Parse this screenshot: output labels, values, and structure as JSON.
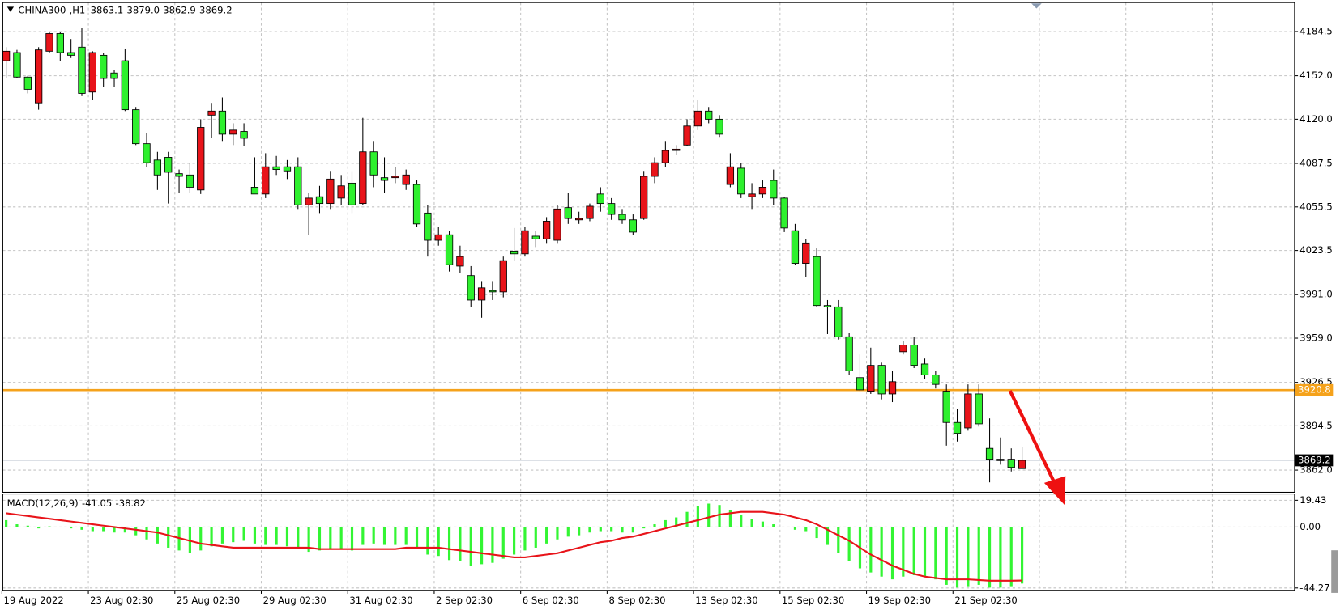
{
  "chart_data": [
    {
      "type": "candlestick",
      "title": "CHINA300-,H1",
      "title_labels": [
        "3863.1",
        "3879.0",
        "3862.9",
        "3869.2"
      ],
      "categories": [
        "19 Aug 2022",
        null,
        null,
        null,
        null,
        null,
        null,
        null,
        "23 Aug 02:30",
        null,
        null,
        null,
        null,
        null,
        null,
        null,
        "25 Aug 02:30",
        null,
        null,
        null,
        null,
        null,
        null,
        null,
        "29 Aug 02:30",
        null,
        null,
        null,
        null,
        null,
        null,
        null,
        "31 Aug 02:30",
        null,
        null,
        null,
        null,
        null,
        null,
        null,
        "2 Sep 02:30",
        null,
        null,
        null,
        null,
        null,
        null,
        null,
        "6 Sep 02:30",
        null,
        null,
        null,
        null,
        null,
        null,
        null,
        "8 Sep 02:30",
        null,
        null,
        null,
        null,
        null,
        null,
        null,
        "13 Sep 02:30",
        null,
        null,
        null,
        null,
        null,
        null,
        null,
        "15 Sep 02:30",
        null,
        null,
        null,
        null,
        null,
        null,
        null,
        "19 Sep 02:30",
        null,
        null,
        null,
        null,
        null,
        null,
        null,
        "21 Sep 02:30",
        null,
        null,
        null,
        null,
        null,
        null
      ],
      "open": [
        4163,
        4169,
        4151,
        4132,
        4170,
        4183,
        4169,
        4173,
        4140,
        4167,
        4154,
        4163,
        4127,
        4102,
        4090,
        4092,
        4080,
        4079,
        4068,
        4123,
        4126,
        4109,
        4111,
        4070,
        4065,
        4085,
        4085,
        4085,
        4057,
        4063,
        4058,
        4062,
        4073,
        4058,
        4096,
        4077,
        4077,
        4072,
        4072,
        4051,
        4031,
        4035,
        4012,
        4005,
        3987,
        3994,
        3993,
        4023,
        4021,
        4034,
        4032,
        4031,
        4055,
        4046,
        4047,
        4065,
        4058,
        4050,
        4046,
        4047,
        4078,
        4088,
        4097,
        4101,
        4115,
        4126,
        4120,
        4072,
        4084,
        4063,
        4065,
        4075,
        4062,
        4038,
        4014,
        4019,
        3983,
        3982,
        3960,
        3930,
        3920,
        3939,
        3918,
        3949,
        3954,
        3940,
        3932,
        3920,
        3897,
        3893,
        3918,
        3878,
        3870,
        3870,
        3863.1
      ],
      "high": [
        4173,
        4171,
        4152,
        4173,
        4184,
        4184,
        4179,
        4187,
        4170,
        4169,
        4156,
        4172,
        4129,
        4110,
        4096,
        4096,
        4083,
        4088,
        4120,
        4132,
        4136,
        4117,
        4117,
        4092,
        4095,
        4093,
        4090,
        4092,
        4066,
        4071,
        4082,
        4079,
        4082,
        4121,
        4104,
        4092,
        4085,
        4083,
        4075,
        4057,
        4041,
        4038,
        4027,
        4012,
        4001,
        4001,
        4019,
        4040,
        4041,
        4038,
        4048,
        4057,
        4066,
        4052,
        4058,
        4070,
        4062,
        4054,
        4050,
        4082,
        4092,
        4104,
        4101,
        4120,
        4134,
        4129,
        4123,
        4095,
        4088,
        4073,
        4075,
        4083,
        4063,
        4043,
        4032,
        4025,
        3987,
        3987,
        3963,
        3947,
        3952,
        3941,
        3935,
        3957,
        3960,
        3944,
        3935,
        3925,
        3907,
        3925,
        3925,
        3900,
        3886,
        3878,
        3879.0
      ],
      "low": [
        4150,
        4150,
        4139,
        4127,
        4169,
        4163,
        4165,
        4137,
        4134,
        4144,
        4144,
        4126,
        4101,
        4085,
        4068,
        4058,
        4066,
        4066,
        4065,
        4106,
        4104,
        4101,
        4100,
        4065,
        4062,
        4079,
        4076,
        4054,
        4035,
        4051,
        4054,
        4057,
        4051,
        4057,
        4070,
        4066,
        4073,
        4068,
        4041,
        4019,
        4027,
        4008,
        4007,
        3982,
        3974,
        3987,
        3989,
        4016,
        4019,
        4026,
        4029,
        4029,
        4043,
        4043,
        4045,
        4052,
        4046,
        4043,
        4035,
        4046,
        4073,
        4085,
        4094,
        4100,
        4112,
        4117,
        4107,
        4070,
        4062,
        4054,
        4062,
        4057,
        4037,
        4013,
        4004,
        3982,
        3962,
        3958,
        3932,
        3920,
        3918,
        3914,
        3912,
        3947,
        3937,
        3929,
        3922,
        3880,
        3883,
        3891,
        3894,
        3853,
        3866,
        3861,
        3862.9
      ],
      "close": [
        4170,
        4151,
        4142,
        4171,
        4183,
        4169,
        4167,
        4139,
        4169,
        4150,
        4150,
        4127,
        4102,
        4088,
        4079,
        4081,
        4078,
        4070,
        4114,
        4126,
        4109,
        4112,
        4106,
        4065,
        4085,
        4083,
        4082,
        4057,
        4062,
        4058,
        4076,
        4071,
        4057,
        4096,
        4079,
        4075,
        4078,
        4079,
        4043,
        4031,
        4035,
        4013,
        4019,
        3987,
        3996,
        3993,
        4016,
        4021,
        4038,
        4032,
        4045,
        4054,
        4047,
        4047,
        4056,
        4058,
        4050,
        4046,
        4037,
        4078,
        4088,
        4097,
        4098,
        4115,
        4126,
        4120,
        4109,
        4085,
        4065,
        4065,
        4070,
        4062,
        4040,
        4014,
        4029,
        3983,
        3982,
        3960,
        3935,
        3921,
        3939,
        3918,
        3927,
        3954,
        3939,
        3932,
        3925,
        3897,
        3889,
        3918,
        3896,
        3870,
        3869,
        3864,
        3869.2
      ],
      "up_color": "#e8141a",
      "down_color": "#2ef02e",
      "ylim": [
        3845.7,
        4205.8
      ],
      "yticks": [
        4184.5,
        {
          "value": 4152,
          "label": "4152.0"
        },
        {
          "value": 4120,
          "label": "4120.0"
        },
        4087.5,
        4055.5,
        4023.5,
        {
          "value": 3991,
          "label": "3991.0"
        },
        {
          "value": 3959,
          "label": "3959.0"
        },
        3926.5,
        3894.5,
        {
          "value": 3862,
          "label": "3862.0"
        }
      ],
      "grid": true,
      "hlines": [
        {
          "value": 3920.8,
          "color": "#f5a21b"
        }
      ],
      "current_price": 3869.2
    },
    {
      "type": "macd",
      "title": "MACD(12,26,9)",
      "histogram": {
        "color": "#33f533",
        "values": [
          5,
          2,
          1,
          -1,
          0.5,
          0,
          -1,
          -2,
          -3,
          -3,
          -4,
          -4,
          -6,
          -9,
          -12,
          -15,
          -17,
          -19,
          -17,
          -14,
          -12,
          -11,
          -10,
          -12,
          -13,
          -13,
          -14,
          -16,
          -18,
          -17,
          -16,
          -16,
          -17,
          -13,
          -12,
          -13,
          -13,
          -13,
          -16,
          -20,
          -21,
          -24,
          -25,
          -28,
          -27,
          -26,
          -23,
          -20,
          -17,
          -15,
          -12,
          -9,
          -7,
          -6,
          -4,
          -3,
          -3,
          -4,
          -4,
          -1,
          2,
          5,
          7,
          11,
          15,
          17,
          16,
          12,
          9,
          6,
          4,
          2,
          0,
          -2,
          -3,
          -8,
          -13,
          -19,
          -25,
          -30,
          -33,
          -36,
          -38,
          -36,
          -35,
          -36,
          -38,
          -42,
          -44,
          -43,
          -42,
          -44,
          -44,
          -43,
          -41.05
        ]
      },
      "signal": {
        "color": "#e8141a",
        "values": [
          10,
          9,
          8,
          7,
          6,
          5,
          4,
          3,
          2,
          1,
          0,
          -1,
          -2,
          -3,
          -4,
          -6,
          -8,
          -10,
          -12,
          -13,
          -14,
          -15,
          -15,
          -15,
          -15,
          -15,
          -15,
          -15,
          -15,
          -16,
          -16,
          -16,
          -16,
          -16,
          -16,
          -16,
          -16,
          -15,
          -15,
          -15,
          -15,
          -16,
          -17,
          -18,
          -19,
          -20,
          -21,
          -22,
          -22,
          -21,
          -20,
          -19,
          -17,
          -15,
          -13,
          -11,
          -10,
          -8,
          -7,
          -5,
          -3,
          -1,
          1,
          3,
          5,
          7,
          9,
          10,
          11,
          11,
          11,
          10,
          9,
          7,
          5,
          2,
          -2,
          -6,
          -10,
          -15,
          -20,
          -24,
          -28,
          -31,
          -34,
          -36,
          -37,
          -38,
          -38,
          -38,
          -38.5,
          -39,
          -39,
          -39,
          -38.82
        ]
      },
      "ylim": [
        -46,
        24
      ],
      "yticks": [
        19.43,
        {
          "value": 0,
          "label": "0.00"
        },
        -44.27
      ],
      "grid": true
    }
  ]
}
